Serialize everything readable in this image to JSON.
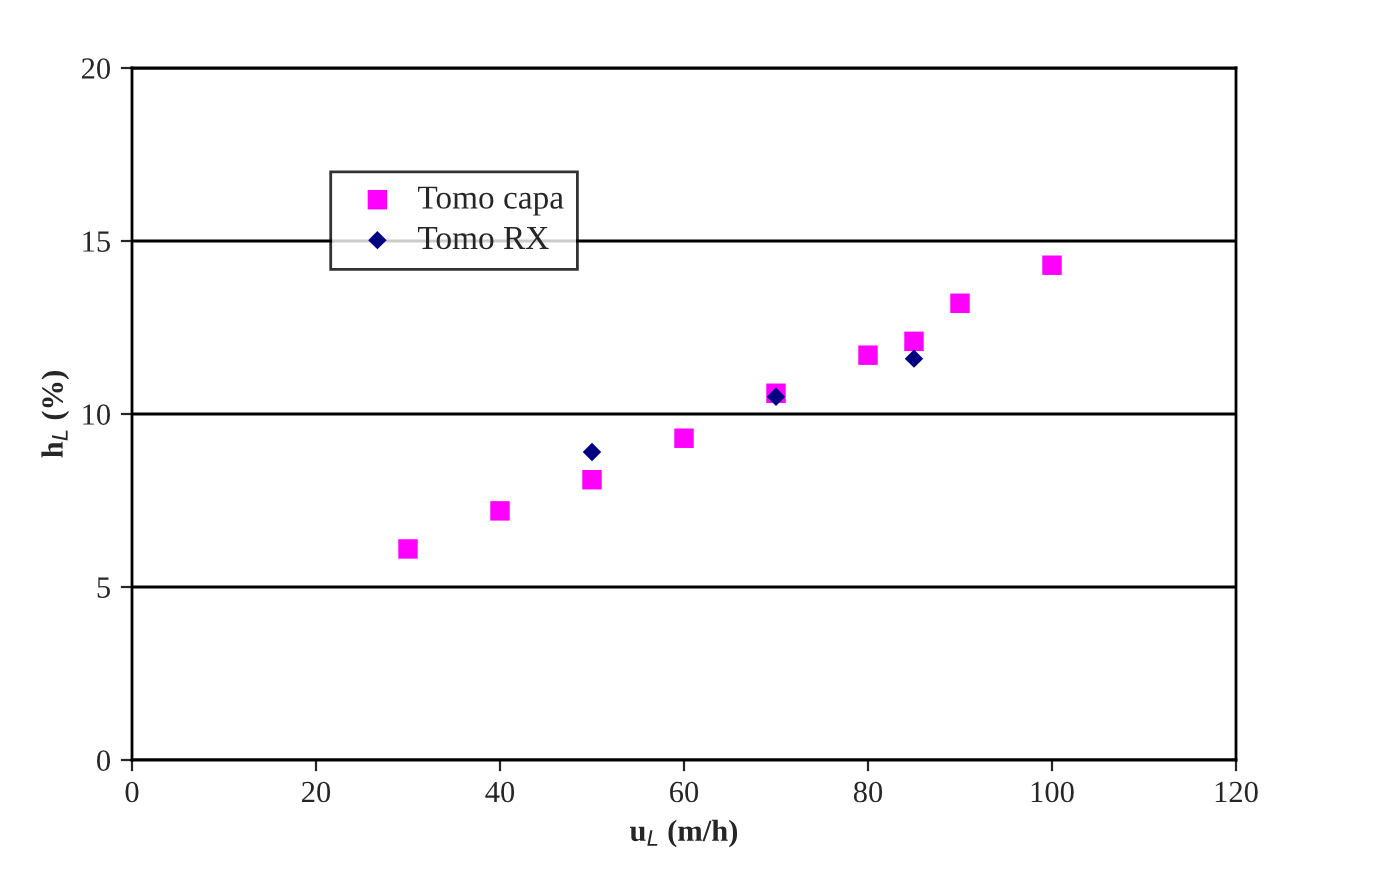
{
  "chart_data": {
    "type": "scatter",
    "xlabel": "u$_{L}$ (m/h)",
    "ylabel": "h$_{L}$ (%)",
    "xlim": [
      0,
      120
    ],
    "xticks": [
      0,
      20,
      40,
      60,
      80,
      100,
      120
    ],
    "ylim": [
      0,
      20
    ],
    "yticks": [
      0,
      5,
      10,
      15,
      20
    ],
    "grid": "y",
    "legend": "top left",
    "series": [
      {
        "name": "Tomo capa",
        "color": "#ff00ff",
        "marker": "square",
        "x": [
          30,
          40,
          50,
          60,
          70,
          80,
          85,
          90,
          100
        ],
        "values": [
          6.1,
          7.2,
          8.1,
          9.3,
          10.6,
          11.7,
          12.1,
          13.2,
          14.3
        ]
      },
      {
        "name": "Tomo RX",
        "color": "#000080",
        "marker": "diamond",
        "x": [
          50,
          70,
          85
        ],
        "values": [
          8.9,
          10.5,
          11.6
        ]
      }
    ]
  }
}
